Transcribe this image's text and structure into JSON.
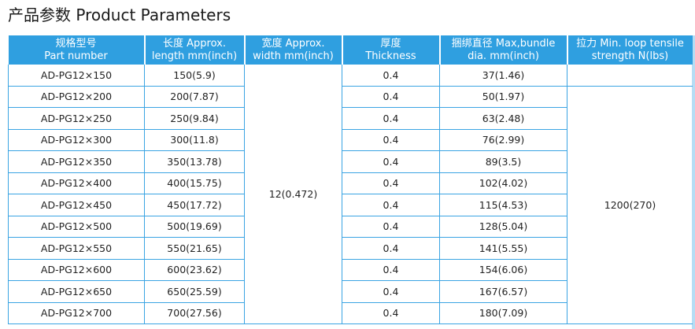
{
  "title": "产品参数 Product Parameters",
  "headers": [
    {
      "cn": "规格型号",
      "en": "Part number"
    },
    {
      "cn": "长度 Approx.",
      "en": "length mm(inch)"
    },
    {
      "cn": "宽度 Approx.",
      "en": "width mm(inch)"
    },
    {
      "cn": "厚度",
      "en": "Thickness"
    },
    {
      "cn": "捆绑直径 Max,bundle",
      "en": "dia. mm(inch)"
    },
    {
      "cn": "拉力 Min. loop tensile",
      "en": "strength N(lbs)"
    }
  ],
  "width_value": "12(0.472)",
  "tensile_value": "1200(270)",
  "rows": [
    {
      "part": "AD-PG12×150",
      "length": "150(5.9)",
      "thickness": "0.4",
      "bundle": "37(1.46)"
    },
    {
      "part": "AD-PG12×200",
      "length": "200(7.87)",
      "thickness": "0.4",
      "bundle": "50(1.97)"
    },
    {
      "part": "AD-PG12×250",
      "length": "250(9.84)",
      "thickness": "0.4",
      "bundle": "63(2.48)"
    },
    {
      "part": "AD-PG12×300",
      "length": "300(11.8)",
      "thickness": "0.4",
      "bundle": "76(2.99)"
    },
    {
      "part": "AD-PG12×350",
      "length": "350(13.78)",
      "thickness": "0.4",
      "bundle": "89(3.5)"
    },
    {
      "part": "AD-PG12×400",
      "length": "400(15.75)",
      "thickness": "0.4",
      "bundle": "102(4.02)"
    },
    {
      "part": "AD-PG12×450",
      "length": "450(17.72)",
      "thickness": "0.4",
      "bundle": "115(4.53)"
    },
    {
      "part": "AD-PG12×500",
      "length": "500(19.69)",
      "thickness": "0.4",
      "bundle": "128(5.04)"
    },
    {
      "part": "AD-PG12×550",
      "length": "550(21.65)",
      "thickness": "0.4",
      "bundle": "141(5.55)"
    },
    {
      "part": "AD-PG12×600",
      "length": "600(23.62)",
      "thickness": "0.4",
      "bundle": "154(6.06)"
    },
    {
      "part": "AD-PG12×650",
      "length": "650(25.59)",
      "thickness": "0.4",
      "bundle": "167(6.57)"
    },
    {
      "part": "AD-PG12×700",
      "length": "700(27.56)",
      "thickness": "0.4",
      "bundle": "180(7.09)"
    }
  ]
}
